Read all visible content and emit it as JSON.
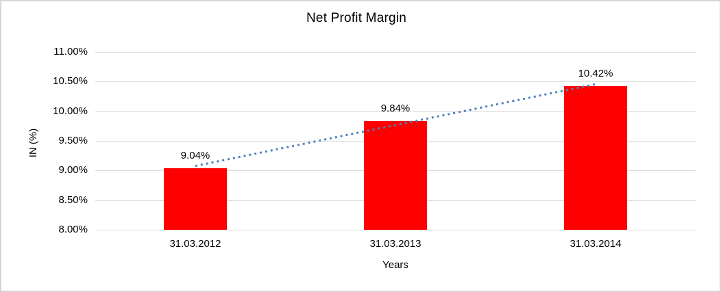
{
  "chart_data": {
    "type": "bar",
    "title": "Net Profit Margin",
    "categories": [
      "31.03.2012",
      "31.03.2013",
      "31.03.2014"
    ],
    "values": [
      9.04,
      9.84,
      10.42
    ],
    "data_labels": [
      "9.04%",
      "9.84%",
      "10.42%"
    ],
    "xlabel": "Years",
    "ylabel": "IN (%)",
    "ylim": [
      8.0,
      11.0
    ],
    "ytick_step": 0.5,
    "ytick_labels": [
      "8.00%",
      "8.50%",
      "9.00%",
      "9.50%",
      "10.00%",
      "10.50%",
      "11.00%"
    ],
    "grid": true,
    "legend": "none",
    "bar_color": "#ff0000",
    "gridline_color": "#d9d9d9",
    "trendline": {
      "type": "linear",
      "style": "dotted",
      "color": "#4f81bd"
    },
    "text_color": "#000000",
    "frame_border_color": "#d6d6d6"
  }
}
